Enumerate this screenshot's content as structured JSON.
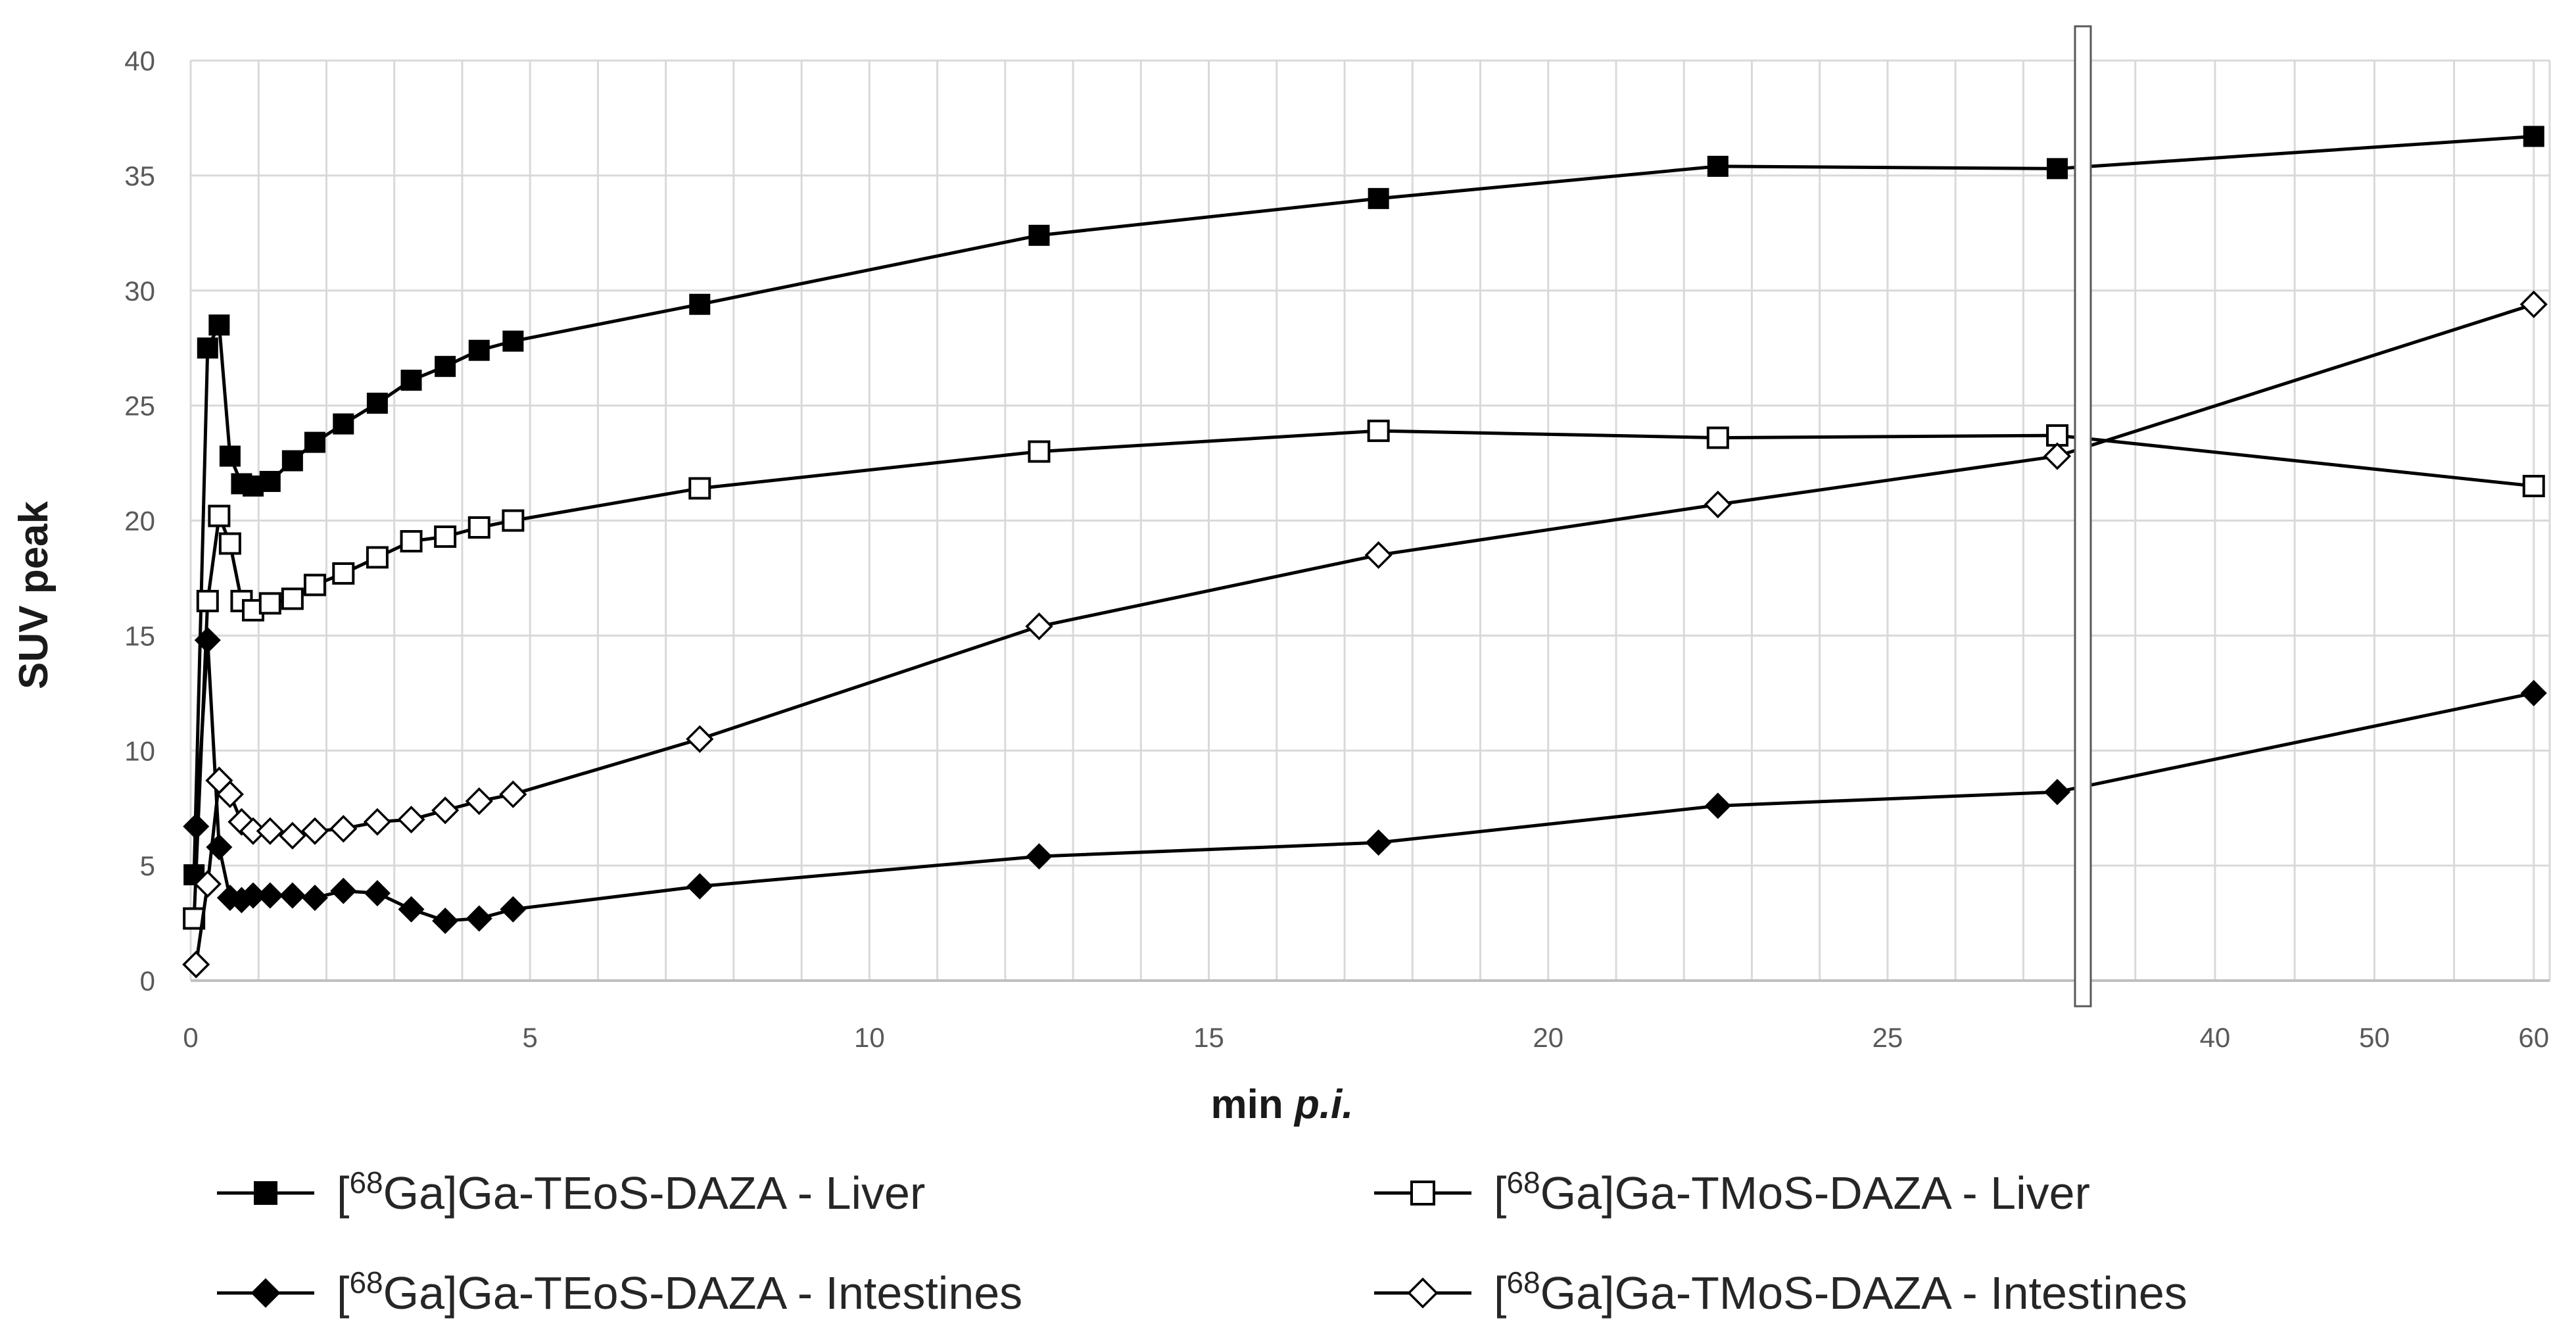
{
  "chart_data": {
    "type": "line",
    "title": "",
    "xlabel": {
      "prefix": "min ",
      "italic": "p.i."
    },
    "ylabel": "SUV peak",
    "ylim": [
      0,
      40
    ],
    "yticks": [
      0,
      5,
      10,
      15,
      20,
      25,
      30,
      35,
      40
    ],
    "x_axis": {
      "linear_segment": {
        "range": [
          0,
          27.8
        ],
        "ticks": [
          0,
          5,
          10,
          15,
          20,
          25
        ]
      },
      "broken_segment": {
        "range": [
          32,
          61
        ],
        "ticks": [
          40,
          50,
          60
        ],
        "minor_ticks": [
          35,
          40,
          45,
          50,
          55,
          60
        ]
      }
    },
    "grid": true,
    "legend_position": "bottom",
    "series": [
      {
        "name": "[68Ga]Ga-TEoS-DAZA - Liver",
        "legend": {
          "pre": "[",
          "sup": "68",
          "post": "Ga]Ga-TEoS-DAZA   -  Liver"
        },
        "marker": "square",
        "filled": true,
        "x": [
          0.05,
          0.25,
          0.42,
          0.58,
          0.75,
          0.92,
          1.17,
          1.5,
          1.83,
          2.25,
          2.75,
          3.25,
          3.75,
          4.25,
          4.75,
          7.5,
          12.5,
          17.5,
          22.5,
          27.5,
          60
        ],
        "y": [
          4.6,
          27.5,
          28.5,
          22.8,
          21.6,
          21.5,
          21.7,
          22.6,
          23.4,
          24.2,
          25.1,
          26.1,
          26.7,
          27.4,
          27.8,
          29.4,
          32.4,
          34.0,
          35.4,
          35.3,
          36.7
        ]
      },
      {
        "name": "[68Ga]Ga-TEoS-DAZA - Intestines",
        "legend": {
          "pre": "[",
          "sup": "68",
          "post": "Ga]Ga-TEoS-DAZA   -  Intestines"
        },
        "marker": "diamond",
        "filled": true,
        "x": [
          0.08,
          0.25,
          0.42,
          0.58,
          0.75,
          0.92,
          1.17,
          1.5,
          1.83,
          2.25,
          2.75,
          3.25,
          3.75,
          4.25,
          4.75,
          7.5,
          12.5,
          17.5,
          22.5,
          27.5,
          60
        ],
        "y": [
          6.7,
          14.8,
          5.8,
          3.6,
          3.5,
          3.7,
          3.7,
          3.7,
          3.6,
          3.9,
          3.8,
          3.1,
          2.6,
          2.7,
          3.1,
          4.1,
          5.4,
          6.0,
          7.6,
          8.2,
          12.5
        ]
      },
      {
        "name": "[68Ga]Ga-TMoS-DAZA - Liver",
        "legend": {
          "pre": "[",
          "sup": "68",
          "post": "Ga]Ga-TMoS-DAZA  -  Liver"
        },
        "marker": "square",
        "filled": false,
        "x": [
          0.05,
          0.25,
          0.42,
          0.58,
          0.75,
          0.92,
          1.17,
          1.5,
          1.83,
          2.25,
          2.75,
          3.25,
          3.75,
          4.25,
          4.75,
          7.5,
          12.5,
          17.5,
          22.5,
          27.5,
          60
        ],
        "y": [
          2.7,
          16.5,
          20.2,
          19.0,
          16.5,
          16.1,
          16.4,
          16.6,
          17.2,
          17.7,
          18.4,
          19.1,
          19.3,
          19.7,
          20.0,
          21.4,
          23.0,
          23.9,
          23.6,
          23.7,
          21.5
        ]
      },
      {
        "name": "[68Ga]Ga-TMoS-DAZA - Intestines",
        "legend": {
          "pre": "[",
          "sup": "68",
          "post": "Ga]Ga-TMoS-DAZA  -  Intestines"
        },
        "marker": "diamond",
        "filled": false,
        "x": [
          0.08,
          0.25,
          0.42,
          0.58,
          0.75,
          0.92,
          1.17,
          1.5,
          1.83,
          2.25,
          2.75,
          3.25,
          3.75,
          4.25,
          4.75,
          7.5,
          12.5,
          17.5,
          22.5,
          27.5,
          60
        ],
        "y": [
          0.7,
          4.2,
          8.7,
          8.1,
          6.9,
          6.5,
          6.5,
          6.3,
          6.5,
          6.6,
          6.9,
          7.0,
          7.4,
          7.8,
          8.1,
          10.5,
          15.4,
          18.5,
          20.7,
          22.8,
          29.4
        ]
      }
    ]
  }
}
